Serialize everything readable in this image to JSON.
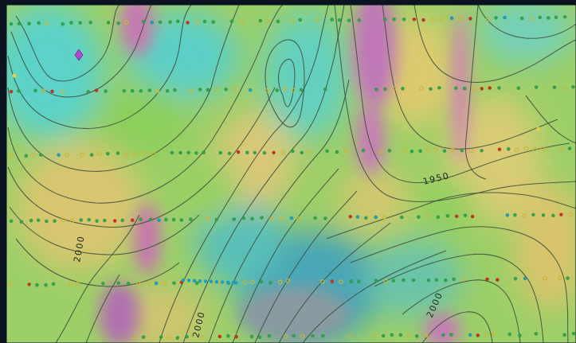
{
  "map": {
    "contour_labels": [
      {
        "text": "2000"
      },
      {
        "text": "1950"
      },
      {
        "text": "2000"
      },
      {
        "text": "2000"
      }
    ],
    "colors": {
      "frame": "#0b1220",
      "low": "#50c8c8",
      "mid": "#a8d060",
      "high": "#d8c870",
      "peak": "#d070b8",
      "contour": "#3b4a3a"
    },
    "sample_points": {
      "legend_colors": [
        "#2fa84a",
        "#e1d04a",
        "#c8321e",
        "#1aa0c0",
        "#b04ad0"
      ]
    }
  }
}
